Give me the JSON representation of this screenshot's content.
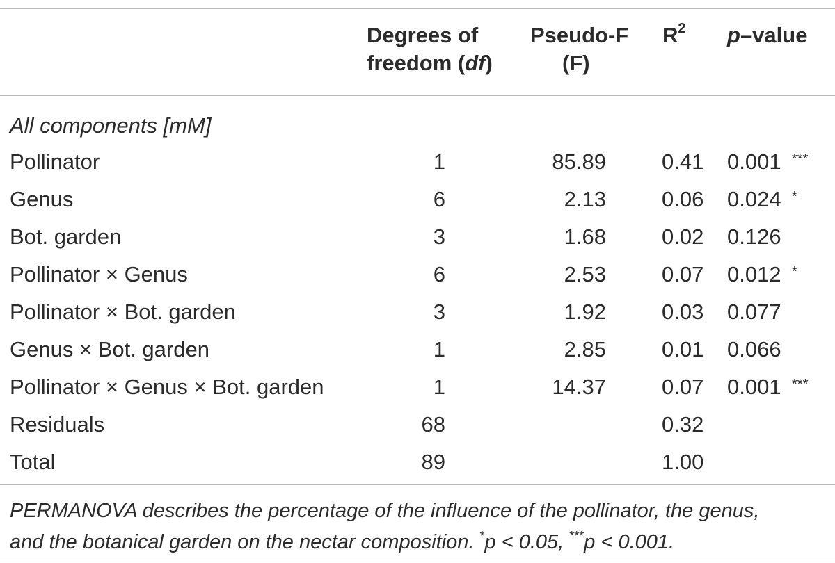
{
  "columns": {
    "df_line1": "Degrees of",
    "df_line2_pre": "freedom (",
    "df_line2_ital": "df",
    "df_line2_post": ")",
    "f_line1": "Pseudo-F",
    "f_line2": "(F)",
    "r2_base": "R",
    "r2_sup": "2",
    "p_ital": "p",
    "p_rest": "–value"
  },
  "section_label": "All components [mM]",
  "rows": [
    {
      "label": "Pollinator",
      "df": "1",
      "f": "85.89",
      "r2": "0.41",
      "p": "0.001",
      "sig": "***"
    },
    {
      "label": "Genus",
      "df": "6",
      "f": "2.13",
      "r2": "0.06",
      "p": "0.024",
      "sig": "*"
    },
    {
      "label": "Bot. garden",
      "df": "3",
      "f": "1.68",
      "r2": "0.02",
      "p": "0.126",
      "sig": ""
    },
    {
      "label": "Pollinator × Genus",
      "df": "6",
      "f": "2.53",
      "r2": "0.07",
      "p": "0.012",
      "sig": "*"
    },
    {
      "label": "Pollinator × Bot. garden",
      "df": "3",
      "f": "1.92",
      "r2": "0.03",
      "p": "0.077",
      "sig": ""
    },
    {
      "label": "Genus × Bot. garden",
      "df": "1",
      "f": "2.85",
      "r2": "0.01",
      "p": "0.066",
      "sig": ""
    },
    {
      "label": "Pollinator × Genus × Bot. garden",
      "df": "1",
      "f": "14.37",
      "r2": "0.07",
      "p": "0.001",
      "sig": "***"
    },
    {
      "label": "Residuals",
      "df": "68",
      "f": "",
      "r2": "0.32",
      "p": "",
      "sig": ""
    },
    {
      "label": "Total",
      "df": "89",
      "f": "",
      "r2": "1.00",
      "p": "",
      "sig": ""
    }
  ],
  "footnote": {
    "line1": "PERMANOVA describes the percentage of the influence of the pollinator, the genus,",
    "line2_a": "and the botanical garden on the nectar composition. ",
    "line2_sup1": "*",
    "line2_b": "p < 0.05, ",
    "line2_sup2": "***",
    "line2_c": "p < 0.001."
  },
  "chart_data": {
    "type": "table",
    "headers": [
      "",
      "Degrees of freedom (df)",
      "Pseudo-F (F)",
      "R2",
      "p–value"
    ],
    "rows": [
      [
        "Pollinator",
        1,
        85.89,
        0.41,
        0.001
      ],
      [
        "Genus",
        6,
        2.13,
        0.06,
        0.024
      ],
      [
        "Bot. garden",
        3,
        1.68,
        0.02,
        0.126
      ],
      [
        "Pollinator × Genus",
        6,
        2.53,
        0.07,
        0.012
      ],
      [
        "Pollinator × Bot. garden",
        3,
        1.92,
        0.03,
        0.077
      ],
      [
        "Genus × Bot. garden",
        1,
        2.85,
        0.01,
        0.066
      ],
      [
        "Pollinator × Genus × Bot. garden",
        1,
        14.37,
        0.07,
        0.001
      ],
      [
        "Residuals",
        68,
        null,
        0.32,
        null
      ],
      [
        "Total",
        89,
        null,
        1.0,
        null
      ]
    ]
  }
}
